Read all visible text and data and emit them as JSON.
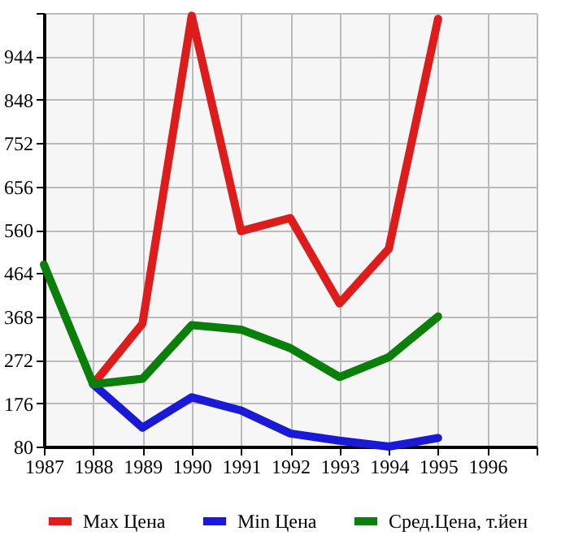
{
  "chart_data": {
    "type": "line",
    "xlim": [
      1987,
      1997
    ],
    "xticks": [
      1987,
      1988,
      1989,
      1990,
      1991,
      1992,
      1993,
      1994,
      1995,
      1996,
      {
        "value": 1997,
        "label": null
      }
    ],
    "ylim": [
      80,
      1040
    ],
    "yticks": [
      80,
      176,
      272,
      368,
      464,
      560,
      656,
      752,
      848,
      944,
      {
        "value": 1040,
        "label": null
      }
    ],
    "grid": true,
    "legend": "bottom",
    "line_style": "solid",
    "series": [
      {
        "name": "Max Цена",
        "color": "#dd1c1c",
        "x": [
          1988,
          1989,
          1990,
          1991,
          1992,
          1993,
          1994,
          1995
        ],
        "values": [
          218,
          352,
          1034,
          557,
          586,
          397,
          518,
          1027
        ]
      },
      {
        "name": "Min Цена",
        "color": "#1a1ad6",
        "x": [
          1988,
          1989,
          1990,
          1991,
          1992,
          1993,
          1994,
          1995
        ],
        "values": [
          218,
          122,
          189,
          160,
          109,
          93,
          80,
          99
        ]
      },
      {
        "name": "Сред.Цена, т.йен",
        "color": "#0a7f0a",
        "x": [
          1987,
          1988,
          1989,
          1990,
          1991,
          1992,
          1993,
          1994,
          1995
        ],
        "values": [
          483,
          218,
          230,
          349,
          339,
          298,
          234,
          278,
          368
        ]
      }
    ]
  }
}
